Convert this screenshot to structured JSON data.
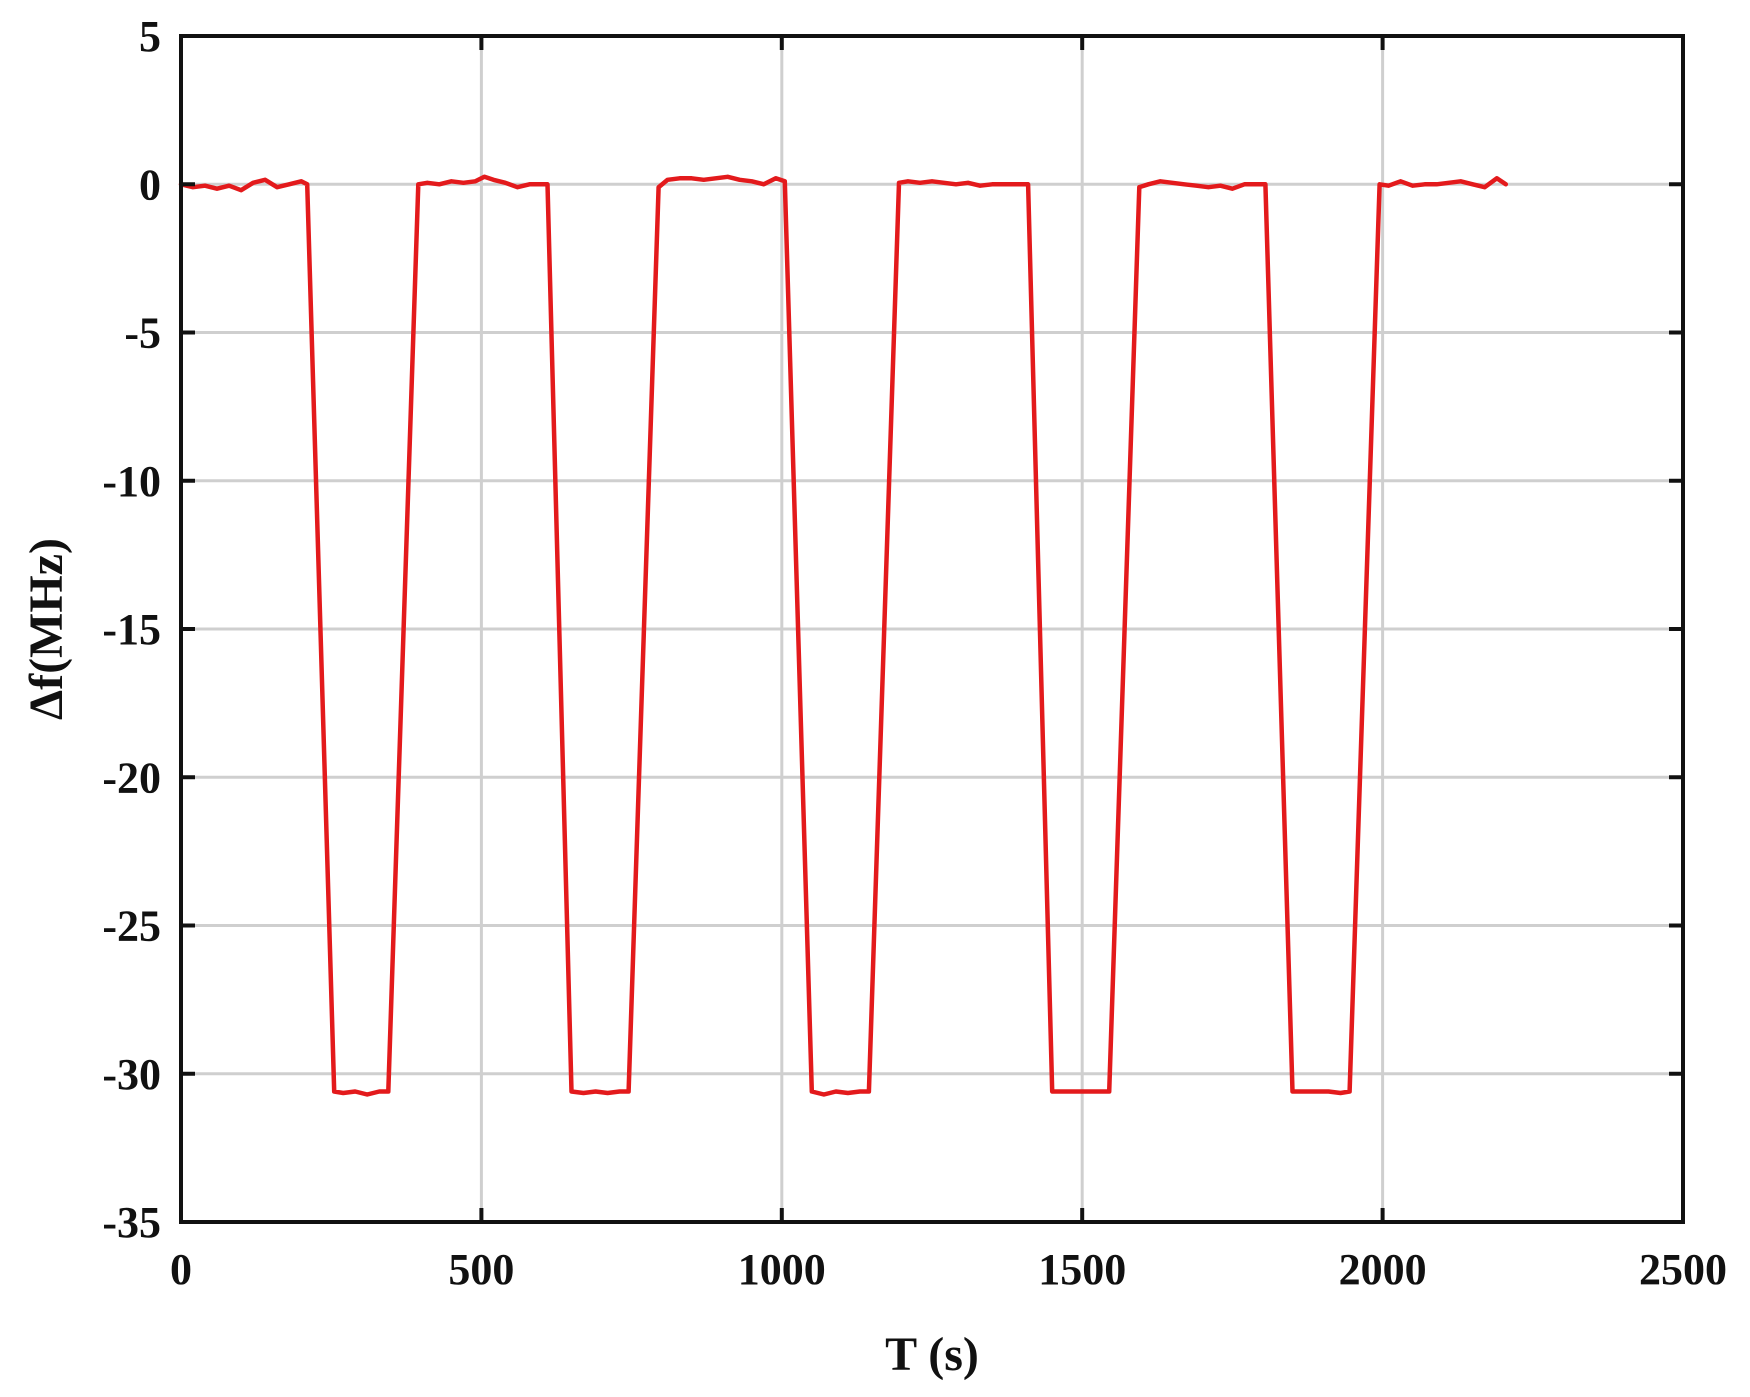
{
  "chart_data": {
    "type": "line",
    "title": "",
    "xlabel": "T (s)",
    "ylabel": "Δf(MHz)",
    "xlim": [
      0,
      2500
    ],
    "ylim": [
      -35,
      5
    ],
    "xticks": [
      0,
      500,
      1000,
      1500,
      2000,
      2500
    ],
    "yticks": [
      5,
      0,
      -5,
      -10,
      -15,
      -20,
      -25,
      -30,
      -35
    ],
    "grid": true,
    "colors": {
      "line": "#e31a1c",
      "grid": "#cfcfcf",
      "axis": "#111111"
    },
    "series": [
      {
        "x": [
          0,
          20,
          40,
          60,
          80,
          100,
          120,
          140,
          160,
          180,
          200,
          210,
          255,
          270,
          290,
          310,
          330,
          345,
          395,
          410,
          430,
          450,
          470,
          490,
          505,
          520,
          540,
          560,
          580,
          595,
          610,
          650,
          670,
          690,
          710,
          730,
          745,
          795,
          810,
          830,
          850,
          870,
          890,
          910,
          930,
          950,
          970,
          990,
          1005,
          1050,
          1070,
          1090,
          1110,
          1130,
          1145,
          1195,
          1210,
          1230,
          1250,
          1270,
          1290,
          1310,
          1330,
          1350,
          1370,
          1390,
          1410,
          1450,
          1470,
          1490,
          1510,
          1530,
          1545,
          1595,
          1610,
          1630,
          1650,
          1670,
          1690,
          1710,
          1730,
          1750,
          1770,
          1790,
          1805,
          1850,
          1870,
          1890,
          1910,
          1930,
          1945,
          1995,
          2010,
          2030,
          2050,
          2070,
          2090,
          2110,
          2130,
          2150,
          2170,
          2190,
          2205
        ],
        "y": [
          0.0,
          -0.1,
          -0.05,
          -0.15,
          -0.05,
          -0.2,
          0.05,
          0.15,
          -0.1,
          0.0,
          0.1,
          0.0,
          -30.6,
          -30.65,
          -30.6,
          -30.7,
          -30.6,
          -30.6,
          0.0,
          0.05,
          0.0,
          0.1,
          0.05,
          0.1,
          0.25,
          0.15,
          0.05,
          -0.1,
          0.0,
          0.0,
          0.0,
          -30.6,
          -30.65,
          -30.6,
          -30.65,
          -30.6,
          -30.6,
          -0.1,
          0.15,
          0.2,
          0.2,
          0.15,
          0.2,
          0.25,
          0.15,
          0.1,
          0.0,
          0.2,
          0.1,
          -30.6,
          -30.7,
          -30.6,
          -30.65,
          -30.6,
          -30.6,
          0.05,
          0.1,
          0.05,
          0.1,
          0.05,
          0.0,
          0.05,
          -0.05,
          0.0,
          0.0,
          0.0,
          0.0,
          -30.6,
          -30.6,
          -30.6,
          -30.6,
          -30.6,
          -30.6,
          -0.1,
          0.0,
          0.1,
          0.05,
          0.0,
          -0.05,
          -0.1,
          -0.05,
          -0.15,
          0.0,
          0.0,
          0.0,
          -30.6,
          -30.6,
          -30.6,
          -30.6,
          -30.65,
          -30.6,
          0.0,
          -0.05,
          0.1,
          -0.05,
          0.0,
          0.0,
          0.05,
          0.1,
          0.0,
          -0.1,
          0.2,
          0.0
        ]
      }
    ]
  }
}
